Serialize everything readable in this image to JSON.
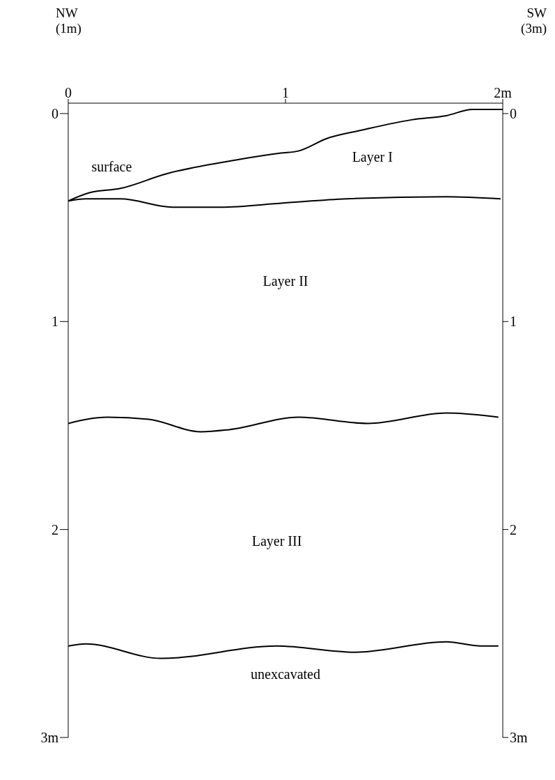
{
  "chart_data": {
    "type": "line",
    "xlim": [
      0,
      2
    ],
    "xticks": [
      0,
      1,
      {
        "value": 2,
        "label": "2m"
      }
    ],
    "ylim": [
      3,
      -0.05
    ],
    "yticks": [
      0,
      1,
      2,
      {
        "value": 3,
        "label": "3m"
      }
    ],
    "y2lim": [
      3,
      -0.05
    ],
    "y2ticks": [
      0,
      1,
      2,
      {
        "value": 3,
        "label": "3m"
      }
    ],
    "grid": false,
    "marker": "none",
    "line_style": "solid",
    "series": [
      {
        "color": "#000000",
        "x": [
          0,
          0.1,
          0.24,
          0.45,
          0.79,
          0.98,
          1.06,
          1.19,
          1.35,
          1.58,
          1.74,
          1.86,
          2.0
        ],
        "values": [
          0.42,
          0.38,
          0.36,
          0.29,
          0.22,
          0.19,
          0.18,
          0.12,
          0.08,
          0.03,
          0.01,
          -0.02,
          -0.02
        ]
      },
      {
        "color": "#000000",
        "x": [
          0,
          0.08,
          0.24,
          0.48,
          0.7,
          0.99,
          1.28,
          1.74,
          1.99
        ],
        "values": [
          0.42,
          0.41,
          0.41,
          0.45,
          0.45,
          0.43,
          0.41,
          0.4,
          0.41
        ]
      },
      {
        "color": "#000000",
        "x": [
          0,
          0.18,
          0.37,
          0.61,
          0.74,
          1.06,
          1.38,
          1.74,
          1.98
        ],
        "values": [
          1.49,
          1.46,
          1.47,
          1.53,
          1.52,
          1.46,
          1.49,
          1.44,
          1.46
        ]
      },
      {
        "color": "#000000",
        "x": [
          0,
          0.08,
          0.43,
          0.96,
          1.32,
          1.74,
          1.9,
          1.98
        ],
        "values": [
          2.56,
          2.55,
          2.62,
          2.56,
          2.59,
          2.54,
          2.56,
          2.56
        ]
      }
    ],
    "annotations": [
      "NW\n(1m)",
      "SW\n(3m)",
      "surface",
      "Layer I",
      "Layer II",
      "Layer III",
      "unexcavated"
    ]
  }
}
